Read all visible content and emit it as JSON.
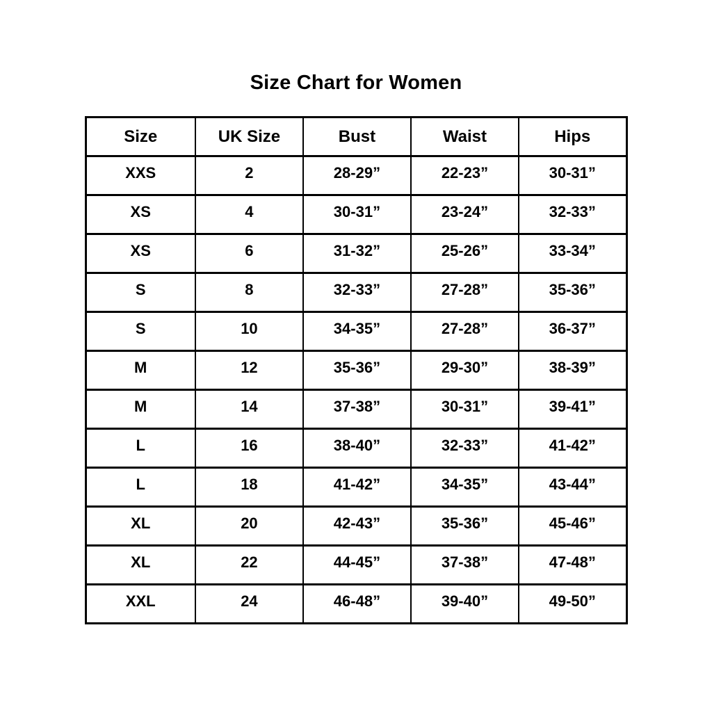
{
  "page": {
    "title": "Size Chart for Women"
  },
  "chart_data": {
    "type": "table",
    "title": "Size Chart for Women",
    "columns": [
      "Size",
      "UK Size",
      "Bust",
      "Waist",
      "Hips"
    ],
    "rows": [
      [
        "XXS",
        "2",
        "28-29”",
        "22-23”",
        "30-31”"
      ],
      [
        "XS",
        "4",
        "30-31”",
        "23-24”",
        "32-33”"
      ],
      [
        "XS",
        "6",
        "31-32”",
        "25-26”",
        "33-34”"
      ],
      [
        "S",
        "8",
        "32-33”",
        "27-28”",
        "35-36”"
      ],
      [
        "S",
        "10",
        "34-35”",
        "27-28”",
        "36-37”"
      ],
      [
        "M",
        "12",
        "35-36”",
        "29-30”",
        "38-39”"
      ],
      [
        "M",
        "14",
        "37-38”",
        "30-31”",
        "39-41”"
      ],
      [
        "L",
        "16",
        "38-40”",
        "32-33”",
        "41-42”"
      ],
      [
        "L",
        "18",
        "41-42”",
        "34-35”",
        "43-44”"
      ],
      [
        "XL",
        "20",
        "42-43”",
        "35-36”",
        "45-46”"
      ],
      [
        "XL",
        "22",
        "44-45”",
        "37-38”",
        "47-48”"
      ],
      [
        "XXL",
        "24",
        "46-48”",
        "39-40”",
        "49-50”"
      ]
    ],
    "layout": {
      "grid": true,
      "text_color": "#000000",
      "border_color": "#000000",
      "background_color": "#ffffff"
    }
  }
}
